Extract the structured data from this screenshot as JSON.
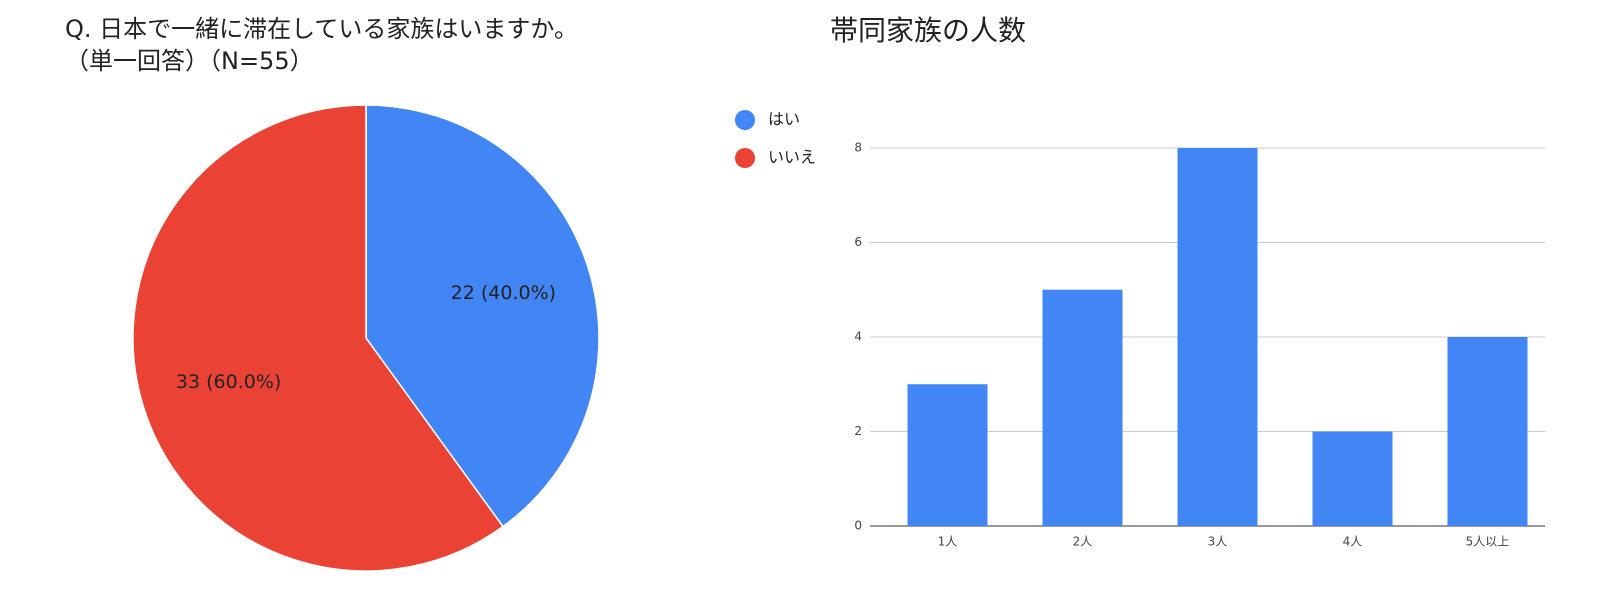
{
  "chart_data": [
    {
      "type": "pie",
      "title": "Q. 日本で一緒に滞在している家族はいますか。",
      "subtitle": "（単一回答）（N=55）",
      "categories": [
        "はい",
        "いいえ"
      ],
      "values": [
        22,
        33
      ],
      "value_labels": [
        "22 (40.0%)",
        "33 (60.0%)"
      ],
      "colors": [
        "#4285f4",
        "#ea4335"
      ],
      "legend": "right"
    },
    {
      "type": "bar",
      "title": "帯同家族の人数",
      "categories": [
        "1人",
        "2人",
        "3人",
        "4人",
        "5人以上"
      ],
      "values": [
        3,
        5,
        8,
        2,
        4
      ],
      "color": "#4285f4",
      "ylim": [
        0,
        8
      ],
      "yticks": [
        0,
        2,
        4,
        6,
        8
      ],
      "grid": true
    }
  ]
}
